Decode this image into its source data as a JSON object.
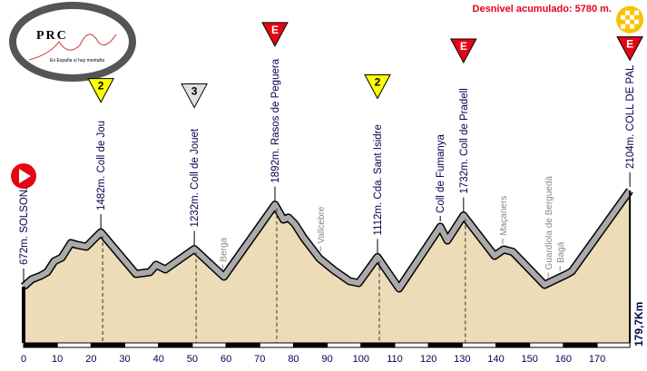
{
  "header": {
    "total_ascent": "Desnivel acumulado: 5780 m."
  },
  "logo": {
    "text": "PRC",
    "tagline": "En España sí hay montaña"
  },
  "chart_data": {
    "type": "area",
    "title": "",
    "xlabel": "",
    "ylabel": "",
    "x_ticks": [
      0,
      10,
      20,
      30,
      40,
      50,
      60,
      70,
      80,
      90,
      100,
      110,
      120,
      130,
      140,
      150,
      160,
      170
    ],
    "xlim": [
      0,
      179.7
    ],
    "total_distance_label": "179,7Km",
    "fill_color": "#ecdcb8",
    "profile": [
      [
        0,
        672
      ],
      [
        2.4,
        780
      ],
      [
        5.1,
        834
      ],
      [
        7,
        888
      ],
      [
        9.1,
        1050
      ],
      [
        11.3,
        1104
      ],
      [
        14,
        1320
      ],
      [
        15.9,
        1293
      ],
      [
        18.6,
        1266
      ],
      [
        22.9,
        1482
      ],
      [
        33.3,
        861
      ],
      [
        37.4,
        888
      ],
      [
        39.3,
        996
      ],
      [
        42,
        929
      ],
      [
        50.6,
        1232
      ],
      [
        59.4,
        820
      ],
      [
        74.5,
        1892
      ],
      [
        77,
        1672
      ],
      [
        78.5,
        1700
      ],
      [
        80.4,
        1604
      ],
      [
        83,
        1400
      ],
      [
        87.7,
        1091
      ],
      [
        92,
        915
      ],
      [
        96.6,
        753
      ],
      [
        99.3,
        726
      ],
      [
        104.9,
        1112
      ],
      [
        111.3,
        645
      ],
      [
        123.5,
        1564
      ],
      [
        125.6,
        1360
      ],
      [
        130.4,
        1732
      ],
      [
        139.6,
        1131
      ],
      [
        142.3,
        1226
      ],
      [
        145,
        1190
      ],
      [
        154.4,
        699
      ],
      [
        161.2,
        861
      ],
      [
        162.5,
        900
      ],
      [
        179.7,
        2104
      ]
    ],
    "summits": [
      {
        "km": 0,
        "label": "672m. SOLSONA",
        "marker": "start",
        "icon": "start-play-icon",
        "color": "#e30613"
      },
      {
        "km": 22.9,
        "label": "1482m. Coll de Jou",
        "marker": "2",
        "color": "#ffff00"
      },
      {
        "km": 50.6,
        "label": "1232m. Coll de Jouet",
        "marker": "3",
        "color": "#e0e0e0"
      },
      {
        "km": 74.5,
        "label": "1892m. Rasos de Peguera",
        "marker": "E",
        "color": "#e30613"
      },
      {
        "km": 104.9,
        "label": "1112m. Cda. Sant Isidre",
        "marker": "2",
        "color": "#ffff00"
      },
      {
        "km": 130.4,
        "label": "1732m. Coll de Pradell",
        "marker": "E",
        "color": "#e30613"
      },
      {
        "km": 179.7,
        "label": "2104m. COLL DE PAL",
        "marker": "E",
        "color": "#e30613",
        "finish_icon": "checkered-finish-icon"
      }
    ],
    "places": [
      {
        "km": 59,
        "elev": 840,
        "label": "Berga",
        "type": "town"
      },
      {
        "km": 88,
        "elev": 1110,
        "label": "Vallcebre",
        "type": "town"
      },
      {
        "km": 123.5,
        "elev": 1564,
        "label": "Coll de Fumanya",
        "type": "pass"
      },
      {
        "km": 142,
        "elev": 1230,
        "label": "Maçaners",
        "type": "town"
      },
      {
        "km": 155.5,
        "elev": 720,
        "label": "Guardiola de Berguedà",
        "type": "town"
      },
      {
        "km": 159,
        "elev": 820,
        "label": "Bagá",
        "type": "town"
      }
    ]
  }
}
